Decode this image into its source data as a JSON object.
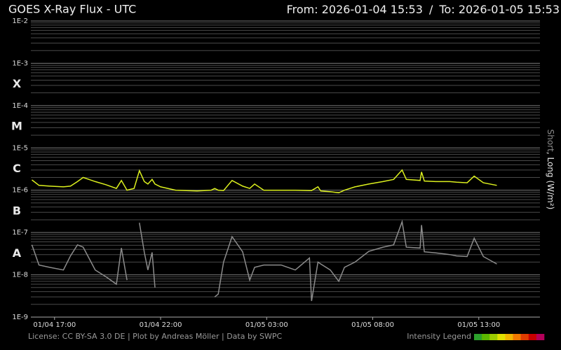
{
  "chart_data": {
    "type": "line",
    "title": "GOES X-Ray Flux - UTC",
    "from_label": "From:",
    "range_separator": "/",
    "to_label": "To:",
    "legend_separator": ", ",
    "ylabel": "(W/m²)",
    "footer": "License: CC BY-SA 3.0 DE | Plot by Andreas Möller | Data by SWPC",
    "intensity_legend": "Intensity Legend",
    "intensity_colors": [
      "#2ca02c",
      "#5cb800",
      "#9ccc00",
      "#e0e000",
      "#f0b400",
      "#f07800",
      "#e03c00",
      "#c80000",
      "#b4005a"
    ],
    "log_scale": true,
    "grid": true,
    "minor_grid": true,
    "flare_classes": [
      {
        "label": "X",
        "color": "#d21414"
      },
      {
        "label": "M",
        "color": "#ff6a00"
      },
      {
        "label": "C",
        "color": "#e6e61e"
      },
      {
        "label": "B",
        "color": "#7ad21e"
      },
      {
        "label": "A",
        "color": "#28b428"
      }
    ],
    "xlim": [
      "2026-01-04 15:53",
      "2026-01-05 15:53"
    ],
    "xticks": [
      {
        "value": "2026-01-04 17:00",
        "label": "01/04 17:00"
      },
      {
        "value": "2026-01-04 22:00",
        "label": "01/04 22:00"
      },
      {
        "value": "2026-01-05 03:00",
        "label": "01/05 03:00"
      },
      {
        "value": "2026-01-05 08:00",
        "label": "01/05 08:00"
      },
      {
        "value": "2026-01-05 13:00",
        "label": "01/05 13:00"
      }
    ],
    "ylim": [
      1e-09,
      0.01
    ],
    "yticks": [
      {
        "value": 1e-09,
        "label": "1E-9"
      },
      {
        "value": 1e-08,
        "label": "1E-8"
      },
      {
        "value": 1e-07,
        "label": "1E-7"
      },
      {
        "value": 1e-06,
        "label": "1E-6"
      },
      {
        "value": 1e-05,
        "label": "1E-5"
      },
      {
        "value": 0.0001,
        "label": "1E-4"
      },
      {
        "value": 0.001,
        "label": "1E-3"
      },
      {
        "value": 0.01,
        "label": "1E-2"
      }
    ],
    "x": [
      "2026-01-04 15:56",
      "2026-01-04 16:16",
      "2026-01-04 16:46",
      "2026-01-04 17:25",
      "2026-01-04 17:45",
      "2026-01-04 18:05",
      "2026-01-04 18:21",
      "2026-01-04 18:55",
      "2026-01-04 19:25",
      "2026-01-04 19:55",
      "2026-01-04 20:09",
      "2026-01-04 20:25",
      "2026-01-04 20:35",
      "2026-01-04 20:45",
      "2026-01-04 21:00",
      "2026-01-04 21:14",
      "2026-01-04 21:24",
      "2026-01-04 21:36",
      "2026-01-04 21:44",
      "2026-01-04 22:00",
      "2026-01-04 22:43",
      "2026-01-04 23:43",
      "2026-01-05 00:23",
      "2026-01-05 00:33",
      "2026-01-05 00:43",
      "2026-01-05 00:58",
      "2026-01-05 01:22",
      "2026-01-05 01:52",
      "2026-01-05 02:12",
      "2026-01-05 02:26",
      "2026-01-05 02:52",
      "2026-01-05 03:41",
      "2026-01-05 04:21",
      "2026-01-05 05:01",
      "2026-01-05 05:07",
      "2026-01-05 05:25",
      "2026-01-05 05:33",
      "2026-01-05 06:00",
      "2026-01-05 06:24",
      "2026-01-05 06:40",
      "2026-01-05 07:10",
      "2026-01-05 07:49",
      "2026-01-05 08:29",
      "2026-01-05 08:59",
      "2026-01-05 09:23",
      "2026-01-05 09:35",
      "2026-01-05 10:14",
      "2026-01-05 10:18",
      "2026-01-05 10:26",
      "2026-01-05 10:58",
      "2026-01-05 11:38",
      "2026-01-05 11:57",
      "2026-01-05 12:27",
      "2026-01-05 12:47",
      "2026-01-05 13:13",
      "2026-01-05 13:51"
    ],
    "series": [
      {
        "name": "Short",
        "color": "#8c8c8c",
        "values": [
          5.1e-08,
          1.7e-08,
          1.5e-08,
          1.3e-08,
          2.8e-08,
          5.1e-08,
          4.5e-08,
          1.3e-08,
          9e-09,
          6e-09,
          4.3e-08,
          7.5e-09,
          null,
          null,
          1.7e-07,
          3.4e-08,
          1.3e-08,
          3.4e-08,
          5e-09,
          null,
          null,
          null,
          null,
          3e-09,
          3.5e-09,
          2e-08,
          8e-08,
          3.5e-08,
          7.5e-09,
          1.5e-08,
          1.7e-08,
          1.7e-08,
          1.3e-08,
          2.5e-08,
          2.4e-09,
          2e-08,
          1.8e-08,
          1.3e-08,
          7e-09,
          1.5e-08,
          2e-08,
          3.6e-08,
          4.5e-08,
          5.1e-08,
          1.8e-07,
          4.5e-08,
          4.3e-08,
          1.5e-07,
          3.5e-08,
          3.3e-08,
          3e-08,
          2.8e-08,
          2.7e-08,
          7.3e-08,
          2.7e-08,
          1.8e-08
        ]
      },
      {
        "name": "Long",
        "color": "#dcf01e",
        "values": [
          1.75e-06,
          1.3e-06,
          1.25e-06,
          1.2e-06,
          1.25e-06,
          1.6e-06,
          2e-06,
          1.6e-06,
          1.35e-06,
          1.1e-06,
          1.7e-06,
          1e-06,
          1.05e-06,
          1.1e-06,
          2.9e-06,
          1.6e-06,
          1.4e-06,
          1.8e-06,
          1.4e-06,
          1.2e-06,
          1e-06,
          9.6e-07,
          1e-06,
          1.1e-06,
          1e-06,
          9.8e-07,
          1.7e-06,
          1.25e-06,
          1.1e-06,
          1.4e-06,
          1e-06,
          1e-06,
          1e-06,
          9.8e-07,
          9.8e-07,
          1.2e-06,
          9.6e-07,
          9.2e-07,
          8.7e-07,
          1e-06,
          1.2e-06,
          1.4e-06,
          1.6e-06,
          1.8e-06,
          3e-06,
          1.8e-06,
          1.7e-06,
          2.7e-06,
          1.65e-06,
          1.6e-06,
          1.6e-06,
          1.55e-06,
          1.5e-06,
          2.15e-06,
          1.5e-06,
          1.3e-06
        ]
      }
    ]
  }
}
